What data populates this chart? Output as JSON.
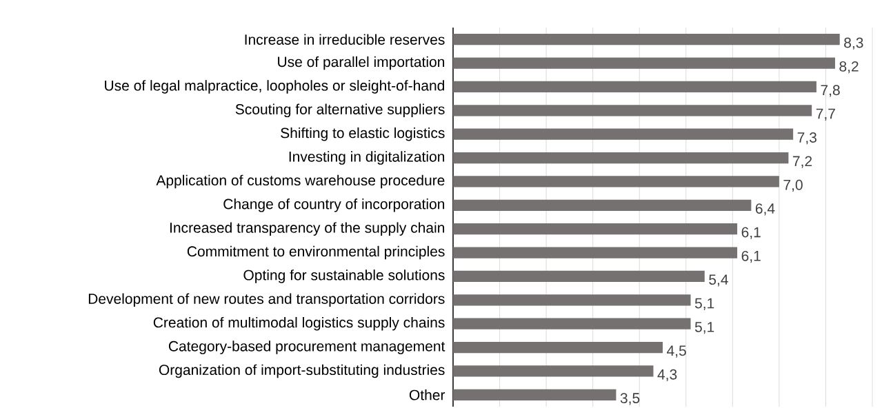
{
  "chart_data": {
    "type": "bar",
    "orientation": "horizontal",
    "categories": [
      "Increase in irreducible reserves",
      "Use of parallel importation",
      "Use of legal malpractice, loopholes or sleight-of-hand",
      "Scouting for alternative suppliers",
      "Shifting to elastic logistics",
      "Investing in digitalization",
      "Application of customs warehouse procedure",
      "Change of country of incorporation",
      "Increased transparency of the supply chain",
      "Commitment to environmental principles",
      "Opting for sustainable solutions",
      "Development of new routes and transportation corridors",
      "Creation of multimodal logistics supply chains",
      "Category-based procurement management",
      "Organization of import-substituting industries",
      "Other"
    ],
    "values": [
      8.3,
      8.2,
      7.8,
      7.7,
      7.3,
      7.2,
      7.0,
      6.4,
      6.1,
      6.1,
      5.4,
      5.1,
      5.1,
      4.5,
      4.3,
      3.5
    ],
    "value_labels": [
      "8,3",
      "8,2",
      "7,8",
      "7,7",
      "7,3",
      "7,2",
      "7,0",
      "6,4",
      "6,1",
      "6,1",
      "5,4",
      "5,1",
      "5,1",
      "4,5",
      "4,3",
      "3,5"
    ],
    "color": "#767171",
    "grid": "x",
    "tick_labels": "y"
  }
}
